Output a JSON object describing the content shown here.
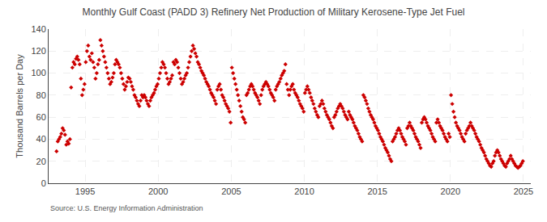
{
  "chart_data": {
    "type": "scatter",
    "title": "Monthly Gulf Coast (PADD 3) Refinery Net Production of Military Kerosene-Type Jet Fuel",
    "ylabel": "Thousand Barrels per Day",
    "source": "Source: U.S. Energy Information Administration",
    "color": "#cc0000",
    "marker": "diamond",
    "grid": true,
    "xlim": [
      1992.5,
      2025.5
    ],
    "xticks": [
      1995,
      2000,
      2005,
      2010,
      2015,
      2020,
      2025
    ],
    "ylim": [
      0,
      140
    ],
    "yticks": [
      0,
      20,
      40,
      60,
      80,
      100,
      120,
      140
    ],
    "x": [
      1993.0417,
      1993.125,
      1993.2083,
      1993.2917,
      1993.375,
      1993.4583,
      1993.5417,
      1993.625,
      1993.7083,
      1993.7917,
      1993.875,
      1993.9583,
      1994.0417,
      1994.125,
      1994.2083,
      1994.2917,
      1994.375,
      1994.4583,
      1994.5417,
      1994.625,
      1994.7083,
      1994.7917,
      1994.875,
      1994.9583,
      1995.0417,
      1995.125,
      1995.2083,
      1995.2917,
      1995.375,
      1995.4583,
      1995.5417,
      1995.625,
      1995.7083,
      1995.7917,
      1995.875,
      1995.9583,
      1996.0417,
      1996.125,
      1996.2083,
      1996.2917,
      1996.375,
      1996.4583,
      1996.5417,
      1996.625,
      1996.7083,
      1996.7917,
      1996.875,
      1996.9583,
      1997.0417,
      1997.125,
      1997.2083,
      1997.2917,
      1997.375,
      1997.4583,
      1997.5417,
      1997.625,
      1997.7083,
      1997.7917,
      1997.875,
      1997.9583,
      1998.0417,
      1998.125,
      1998.2083,
      1998.2917,
      1998.375,
      1998.4583,
      1998.5417,
      1998.625,
      1998.7083,
      1998.7917,
      1998.875,
      1998.9583,
      1999.0417,
      1999.125,
      1999.2083,
      1999.2917,
      1999.375,
      1999.4583,
      1999.5417,
      1999.625,
      1999.7083,
      1999.7917,
      1999.875,
      1999.9583,
      2000.0417,
      2000.125,
      2000.2083,
      2000.2917,
      2000.375,
      2000.4583,
      2000.5417,
      2000.625,
      2000.7083,
      2000.7917,
      2000.875,
      2000.9583,
      2001.0417,
      2001.125,
      2001.2083,
      2001.2917,
      2001.375,
      2001.4583,
      2001.5417,
      2001.625,
      2001.7083,
      2001.7917,
      2001.875,
      2001.9583,
      2002.0417,
      2002.125,
      2002.2083,
      2002.2917,
      2002.375,
      2002.4583,
      2002.5417,
      2002.625,
      2002.7083,
      2002.7917,
      2002.875,
      2002.9583,
      2003.0417,
      2003.125,
      2003.2083,
      2003.2917,
      2003.375,
      2003.4583,
      2003.5417,
      2003.625,
      2003.7083,
      2003.7917,
      2003.875,
      2003.9583,
      2004.0417,
      2004.125,
      2004.2083,
      2004.2917,
      2004.375,
      2004.4583,
      2004.5417,
      2004.625,
      2004.7083,
      2004.7917,
      2004.875,
      2004.9583,
      2005.0417,
      2005.125,
      2005.2083,
      2005.2917,
      2005.375,
      2005.4583,
      2005.5417,
      2005.625,
      2005.7083,
      2005.7917,
      2005.875,
      2005.9583,
      2006.0417,
      2006.125,
      2006.2083,
      2006.2917,
      2006.375,
      2006.4583,
      2006.5417,
      2006.625,
      2006.7083,
      2006.7917,
      2006.875,
      2006.9583,
      2007.0417,
      2007.125,
      2007.2083,
      2007.2917,
      2007.375,
      2007.4583,
      2007.5417,
      2007.625,
      2007.7083,
      2007.7917,
      2007.875,
      2007.9583,
      2008.0417,
      2008.125,
      2008.2083,
      2008.2917,
      2008.375,
      2008.4583,
      2008.5417,
      2008.625,
      2008.7083,
      2008.7917,
      2008.875,
      2008.9583,
      2009.0417,
      2009.125,
      2009.2083,
      2009.2917,
      2009.375,
      2009.4583,
      2009.5417,
      2009.625,
      2009.7083,
      2009.7917,
      2009.875,
      2009.9583,
      2010.0417,
      2010.125,
      2010.2083,
      2010.2917,
      2010.375,
      2010.4583,
      2010.5417,
      2010.625,
      2010.7083,
      2010.7917,
      2010.875,
      2010.9583,
      2011.0417,
      2011.125,
      2011.2083,
      2011.2917,
      2011.375,
      2011.4583,
      2011.5417,
      2011.625,
      2011.7083,
      2011.7917,
      2011.875,
      2011.9583,
      2012.0417,
      2012.125,
      2012.2083,
      2012.2917,
      2012.375,
      2012.4583,
      2012.5417,
      2012.625,
      2012.7083,
      2012.7917,
      2012.875,
      2012.9583,
      2013.0417,
      2013.125,
      2013.2083,
      2013.2917,
      2013.375,
      2013.4583,
      2013.5417,
      2013.625,
      2013.7083,
      2013.7917,
      2013.875,
      2013.9583,
      2014.0417,
      2014.125,
      2014.2083,
      2014.2917,
      2014.375,
      2014.4583,
      2014.5417,
      2014.625,
      2014.7083,
      2014.7917,
      2014.875,
      2014.9583,
      2015.0417,
      2015.125,
      2015.2083,
      2015.2917,
      2015.375,
      2015.4583,
      2015.5417,
      2015.625,
      2015.7083,
      2015.7917,
      2015.875,
      2015.9583,
      2016.0417,
      2016.125,
      2016.2083,
      2016.2917,
      2016.375,
      2016.4583,
      2016.5417,
      2016.625,
      2016.7083,
      2016.7917,
      2016.875,
      2016.9583,
      2017.0417,
      2017.125,
      2017.2083,
      2017.2917,
      2017.375,
      2017.4583,
      2017.5417,
      2017.625,
      2017.7083,
      2017.7917,
      2017.875,
      2017.9583,
      2018.0417,
      2018.125,
      2018.2083,
      2018.2917,
      2018.375,
      2018.4583,
      2018.5417,
      2018.625,
      2018.7083,
      2018.7917,
      2018.875,
      2018.9583,
      2019.0417,
      2019.125,
      2019.2083,
      2019.2917,
      2019.375,
      2019.4583,
      2019.5417,
      2019.625,
      2019.7083,
      2019.7917,
      2019.875,
      2019.9583,
      2020.0417,
      2020.125,
      2020.2083,
      2020.2917,
      2020.375,
      2020.4583,
      2020.5417,
      2020.625,
      2020.7083,
      2020.7917,
      2020.875,
      2020.9583,
      2021.0417,
      2021.125,
      2021.2083,
      2021.2917,
      2021.375,
      2021.4583,
      2021.5417,
      2021.625,
      2021.7083,
      2021.7917,
      2021.875,
      2021.9583,
      2022.0417,
      2022.125,
      2022.2083,
      2022.2917,
      2022.375,
      2022.4583,
      2022.5417,
      2022.625,
      2022.7083,
      2022.7917,
      2022.875,
      2022.9583,
      2023.0417,
      2023.125,
      2023.2083,
      2023.2917,
      2023.375,
      2023.4583,
      2023.5417,
      2023.625,
      2023.7083,
      2023.7917,
      2023.875,
      2023.9583,
      2024.0417,
      2024.125,
      2024.2083,
      2024.2917,
      2024.375,
      2024.4583,
      2024.5417,
      2024.625,
      2024.7083,
      2024.7917,
      2024.875,
      2024.9583
    ],
    "values": [
      29,
      38,
      40,
      42,
      45,
      50,
      48,
      44,
      35,
      38,
      36,
      40,
      87,
      105,
      110,
      108,
      113,
      115,
      112,
      108,
      95,
      80,
      85,
      90,
      110,
      120,
      125,
      115,
      112,
      118,
      110,
      105,
      95,
      100,
      108,
      112,
      130,
      125,
      120,
      115,
      110,
      105,
      100,
      95,
      90,
      92,
      96,
      100,
      108,
      112,
      110,
      108,
      105,
      100,
      95,
      90,
      85,
      88,
      92,
      96,
      95,
      92,
      88,
      85,
      80,
      78,
      75,
      72,
      70,
      75,
      80,
      78,
      80,
      78,
      75,
      72,
      70,
      75,
      78,
      80,
      82,
      85,
      88,
      90,
      95,
      100,
      105,
      110,
      108,
      105,
      100,
      95,
      90,
      92,
      95,
      98,
      110,
      108,
      112,
      110,
      105,
      100,
      95,
      90,
      92,
      95,
      98,
      100,
      105,
      110,
      115,
      120,
      125,
      122,
      118,
      115,
      110,
      108,
      105,
      102,
      100,
      98,
      95,
      92,
      90,
      88,
      85,
      82,
      80,
      78,
      75,
      72,
      85,
      88,
      90,
      85,
      80,
      78,
      75,
      72,
      70,
      68,
      65,
      55,
      105,
      100,
      95,
      90,
      85,
      80,
      75,
      70,
      65,
      60,
      58,
      55,
      80,
      82,
      85,
      88,
      90,
      88,
      85,
      82,
      80,
      78,
      75,
      72,
      80,
      85,
      88,
      90,
      92,
      90,
      88,
      85,
      82,
      80,
      78,
      75,
      85,
      88,
      90,
      92,
      95,
      98,
      100,
      102,
      108,
      90,
      85,
      80,
      85,
      88,
      90,
      85,
      82,
      80,
      78,
      75,
      72,
      70,
      68,
      65,
      82,
      85,
      88,
      85,
      82,
      78,
      75,
      72,
      68,
      65,
      62,
      60,
      70,
      72,
      75,
      72,
      68,
      65,
      62,
      60,
      58,
      55,
      52,
      50,
      60,
      62,
      65,
      68,
      70,
      72,
      70,
      68,
      65,
      62,
      60,
      58,
      65,
      62,
      60,
      58,
      55,
      52,
      50,
      48,
      45,
      42,
      40,
      38,
      80,
      78,
      75,
      72,
      68,
      65,
      62,
      60,
      58,
      55,
      52,
      50,
      48,
      45,
      42,
      40,
      38,
      35,
      32,
      30,
      28,
      25,
      22,
      20,
      38,
      40,
      42,
      45,
      48,
      50,
      48,
      45,
      42,
      40,
      38,
      35,
      50,
      52,
      55,
      52,
      50,
      48,
      45,
      42,
      40,
      38,
      35,
      32,
      55,
      58,
      60,
      58,
      55,
      52,
      50,
      48,
      45,
      42,
      40,
      38,
      55,
      58,
      55,
      52,
      50,
      48,
      45,
      42,
      40,
      38,
      45,
      42,
      80,
      72,
      65,
      60,
      55,
      52,
      50,
      48,
      45,
      42,
      40,
      38,
      45,
      48,
      50,
      52,
      55,
      52,
      50,
      48,
      45,
      42,
      40,
      38,
      35,
      32,
      30,
      28,
      25,
      22,
      20,
      18,
      16,
      15,
      18,
      20,
      25,
      28,
      30,
      28,
      25,
      22,
      20,
      18,
      16,
      15,
      18,
      20,
      22,
      25,
      22,
      20,
      18,
      16,
      15,
      14,
      15,
      16,
      18,
      20
    ]
  }
}
